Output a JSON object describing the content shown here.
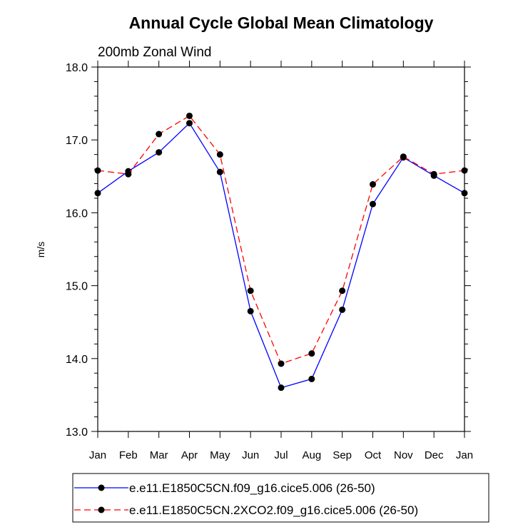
{
  "chart_data": {
    "type": "line",
    "title": "Annual Cycle Global Mean Climatology",
    "subtitle": "200mb Zonal Wind",
    "xlabel": "",
    "ylabel": "m/s",
    "ylim": [
      13.0,
      18.0
    ],
    "yticks": [
      "13.0",
      "14.0",
      "15.0",
      "16.0",
      "17.0",
      "18.0"
    ],
    "categories": [
      "Jan",
      "Feb",
      "Mar",
      "Apr",
      "May",
      "Jun",
      "Jul",
      "Aug",
      "Sep",
      "Oct",
      "Nov",
      "Dec",
      "Jan"
    ],
    "grid": false,
    "legend_position": "bottom",
    "series": [
      {
        "name": "e.e11.E1850C5CN.f09_g16.cice5.006 (26-50)",
        "color": "#0000ff",
        "line_style": "solid",
        "values": [
          16.27,
          16.57,
          16.83,
          17.23,
          16.56,
          14.65,
          13.6,
          13.72,
          14.67,
          16.12,
          16.76,
          16.51,
          16.27
        ]
      },
      {
        "name": "e.e11.E1850C5CN.2XCO2.f09_g16.cice5.006 (26-50)",
        "color": "#ff0000",
        "line_style": "dashed",
        "values": [
          16.58,
          16.53,
          17.08,
          17.33,
          16.8,
          14.93,
          13.93,
          14.07,
          14.93,
          16.39,
          16.77,
          16.53,
          16.58
        ]
      }
    ]
  }
}
